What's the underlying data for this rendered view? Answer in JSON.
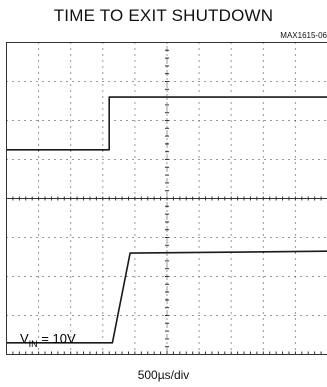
{
  "title": "TIME TO EXIT SHUTDOWN",
  "figure_id": "MAX1615-06",
  "time_label": "500µs/div",
  "annotation": {
    "prefix": "V",
    "subscript": "IN",
    "suffix": " = 10V"
  },
  "colors": {
    "trace": "#1a1a1a",
    "grid": "#333333",
    "background": "#ffffff"
  },
  "chart_data": {
    "type": "line",
    "title": "TIME TO EXIT SHUTDOWN",
    "x_unit": "divisions (500µs/div)",
    "xlim": [
      0,
      10
    ],
    "ylim": [
      0,
      8
    ],
    "grid": true,
    "divisions": {
      "x": 10,
      "y": 8
    },
    "series": [
      {
        "x": [
          0,
          3.2,
          3.2,
          10
        ],
        "y": [
          5.25,
          5.25,
          6.6,
          6.6
        ]
      },
      {
        "x": [
          0,
          3.3,
          3.85,
          10
        ],
        "y": [
          0.3,
          0.3,
          2.6,
          2.65
        ]
      }
    ]
  }
}
